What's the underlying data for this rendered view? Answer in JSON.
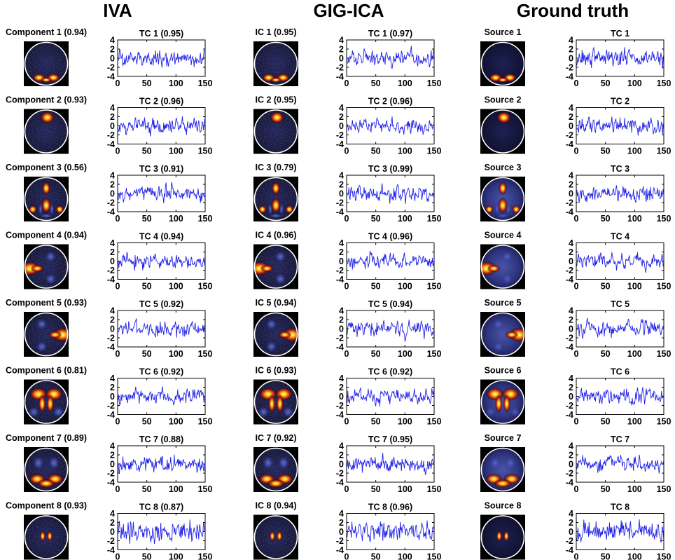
{
  "sections": [
    {
      "title": "IVA"
    },
    {
      "title": "GIG-ICA"
    },
    {
      "title": "Ground truth"
    }
  ],
  "colors": {
    "trace": "#2222e8",
    "map_background": "#000000",
    "circle": "#ffffff"
  },
  "chart_data": {
    "type": "line",
    "description_kind": "grid of spatial maps with time courses",
    "x_axis": {
      "xlim": [
        0,
        150
      ],
      "ticks": [
        "0",
        "50",
        "100",
        "150"
      ]
    },
    "y_axis": {
      "ylim": [
        -4,
        4
      ],
      "ticks": [
        "4",
        "2",
        "0",
        "-2",
        "-4"
      ]
    },
    "n_points": 150,
    "rows": [
      {
        "iva_map": "Component 1 (0.94)",
        "iva_tc": "TC 1 (0.95)",
        "gig_map": "IC 1 (0.95)",
        "gig_tc": "TC 1 (0.97)",
        "gt_map": "Source 1",
        "gt_tc": "TC 1",
        "pattern": "bottom-lobes",
        "seed": 11,
        "noise": "smooth"
      },
      {
        "iva_map": "Component 2 (0.93)",
        "iva_tc": "TC 2 (0.96)",
        "gig_map": "IC 2 (0.95)",
        "gig_tc": "TC 2 (0.96)",
        "gt_map": "Source 2",
        "gt_tc": "TC 2",
        "pattern": "top-blob",
        "seed": 23,
        "noise": "smooth"
      },
      {
        "iva_map": "Component 3 (0.56)",
        "iva_tc": "TC 3 (0.91)",
        "gig_map": "IC 3 (0.79)",
        "gig_tc": "TC 3 (0.99)",
        "gt_map": "Source 3",
        "gt_tc": "TC 3",
        "pattern": "multi-blob",
        "seed": 37,
        "noise": "smooth"
      },
      {
        "iva_map": "Component 4 (0.94)",
        "iva_tc": "TC 4 (0.94)",
        "gig_map": "IC 4 (0.96)",
        "gig_tc": "TC 4 (0.96)",
        "gt_map": "Source 4",
        "gt_tc": "TC 4",
        "pattern": "left-wedge",
        "seed": 41,
        "noise": "smooth"
      },
      {
        "iva_map": "Component 5 (0.93)",
        "iva_tc": "TC 5 (0.92)",
        "gig_map": "IC 5 (0.94)",
        "gig_tc": "TC 5 (0.94)",
        "gt_map": "Source 5",
        "gt_tc": "TC 5",
        "pattern": "right-wedge",
        "seed": 53,
        "noise": "smooth"
      },
      {
        "iva_map": "Component 6 (0.81)",
        "iva_tc": "TC 6 (0.92)",
        "gig_map": "IC 6 (0.93)",
        "gig_tc": "TC 6 (0.92)",
        "gt_map": "Source 6",
        "gt_tc": "TC 6",
        "pattern": "butterfly",
        "seed": 67,
        "noise": "smooth"
      },
      {
        "iva_map": "Component 7 (0.89)",
        "iva_tc": "TC 7 (0.88)",
        "gig_map": "IC 7 (0.92)",
        "gig_tc": "TC 7 (0.95)",
        "gt_map": "Source 7",
        "gt_tc": "TC 7",
        "pattern": "bottom-arc",
        "seed": 79,
        "noise": "smooth"
      },
      {
        "iva_map": "Component 8 (0.93)",
        "iva_tc": "TC 8 (0.87)",
        "gig_map": "IC 8 (0.94)",
        "gig_tc": "TC 8 (0.96)",
        "gt_map": "Source 8",
        "gt_tc": "TC 8",
        "pattern": "small-pair",
        "seed": 97,
        "noise": "fast"
      }
    ]
  }
}
